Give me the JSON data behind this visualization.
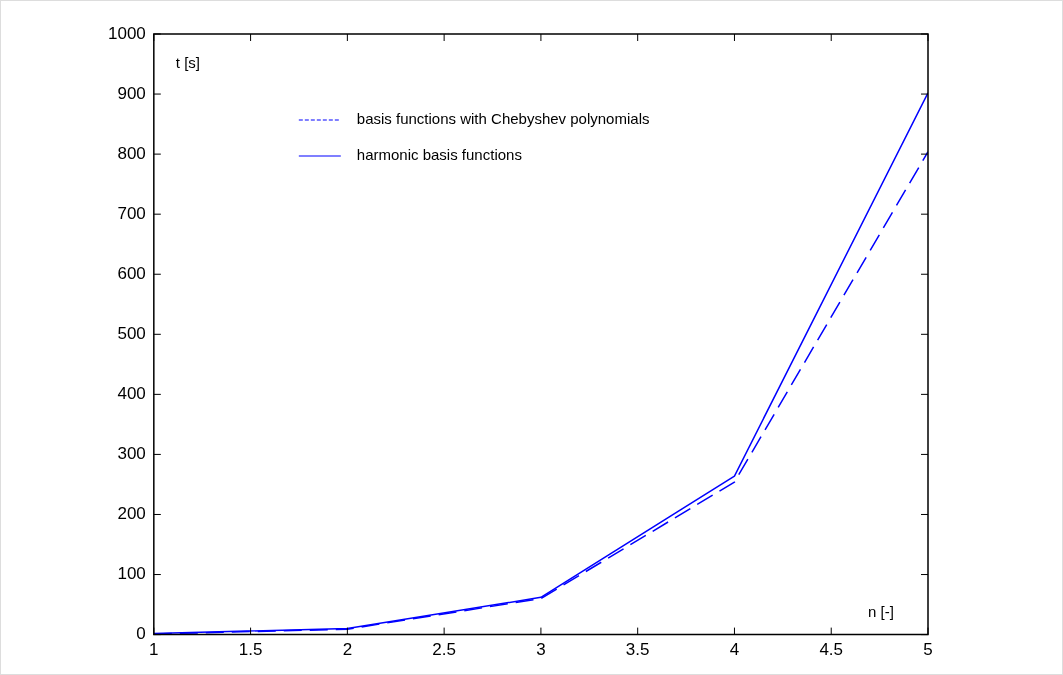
{
  "chart_data": {
    "type": "line",
    "xlabel": "n [-]",
    "ylabel": "t [s]",
    "xlim": [
      1,
      5
    ],
    "xticks": [
      1,
      1.5,
      2,
      2.5,
      3,
      3.5,
      4,
      4.5,
      5
    ],
    "ylim": [
      0,
      1000
    ],
    "yticks": [
      0,
      100,
      200,
      300,
      400,
      500,
      600,
      700,
      800,
      900,
      1000
    ],
    "x": [
      1,
      2,
      3,
      4,
      5
    ],
    "series": [
      {
        "name": "basis functions with Chebyshev polynomials",
        "color": "#0000ff",
        "line_style": "dashed",
        "values": [
          1,
          9,
          60,
          254,
          804
        ]
      },
      {
        "name": "harmonic basis functions",
        "color": "#0000ff",
        "line_style": "solid",
        "values": [
          2,
          10,
          62,
          264,
          902
        ]
      }
    ],
    "legend": "top",
    "grid": false,
    "marker": "none"
  }
}
